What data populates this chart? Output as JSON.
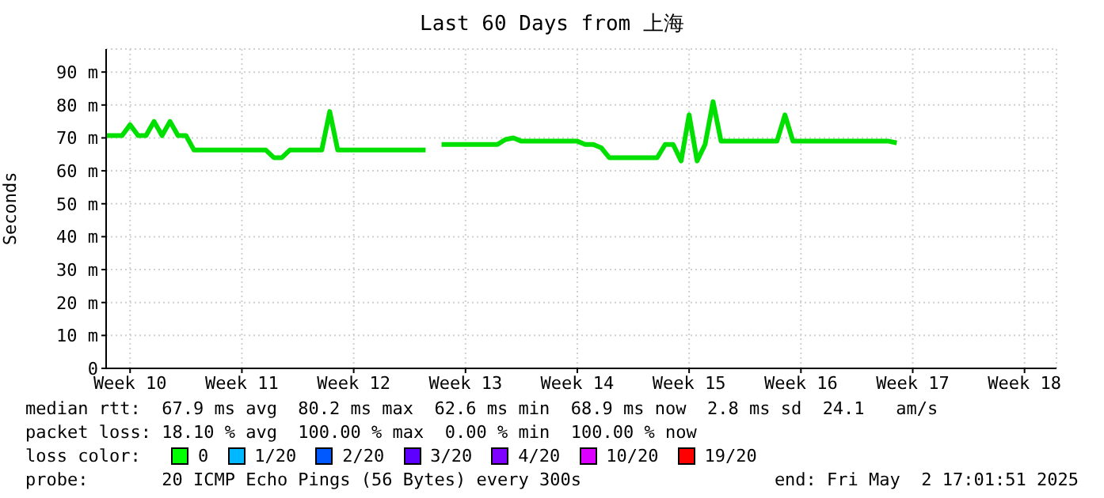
{
  "chart_data": {
    "type": "line",
    "title": "Last 60 Days from 上海",
    "ylabel": "Seconds",
    "categories": [
      null,
      null,
      null,
      "Week 10",
      null,
      null,
      null,
      null,
      null,
      null,
      null,
      null,
      null,
      null,
      null,
      null,
      null,
      "Week 11",
      null,
      null,
      null,
      null,
      null,
      null,
      null,
      null,
      null,
      null,
      null,
      null,
      null,
      "Week 12",
      null,
      null,
      null,
      null,
      null,
      null,
      null,
      null,
      null,
      null,
      null,
      null,
      null,
      "Week 13",
      null,
      null,
      null,
      null,
      null,
      null,
      null,
      null,
      null,
      null,
      null,
      null,
      null,
      "Week 14",
      null,
      null,
      null,
      null,
      null,
      null,
      null,
      null,
      null,
      null,
      null,
      null,
      null,
      "Week 15",
      null,
      null,
      null,
      null,
      null,
      null,
      null,
      null,
      null,
      null,
      null,
      null,
      null,
      "Week 16",
      null,
      null,
      null,
      null,
      null,
      null,
      null,
      null,
      null,
      null,
      null,
      null,
      null,
      "Week 17",
      null,
      null,
      null,
      null,
      null,
      null,
      null,
      null,
      null,
      null,
      null,
      null,
      null,
      "Week 18",
      null,
      null,
      null,
      null
    ],
    "series": [
      {
        "color": "#00e000",
        "values": [
          70.7,
          70.7,
          70.7,
          74,
          70.7,
          70.7,
          75,
          70.7,
          75,
          70.7,
          70.7,
          66.3,
          66.3,
          66.3,
          66.3,
          66.3,
          66.3,
          66.3,
          66.3,
          66.3,
          66.3,
          64,
          64,
          66.3,
          66.3,
          66.3,
          66.3,
          66.3,
          78,
          66.3,
          66.3,
          66.3,
          66.3,
          66.3,
          66.3,
          66.3,
          66.3,
          66.3,
          66.3,
          66.3,
          66.3,
          null,
          68,
          68,
          68,
          68,
          68,
          68,
          68,
          68,
          69.5,
          70,
          69,
          69,
          69,
          69,
          69,
          69,
          69,
          69,
          68,
          68,
          67,
          64,
          64,
          64,
          64,
          64,
          64,
          64,
          68,
          68,
          63,
          77,
          63,
          68,
          81,
          69,
          69,
          69,
          69,
          69,
          69,
          69,
          69,
          77,
          69,
          69,
          69,
          69,
          69,
          69,
          69,
          69,
          69,
          69,
          69,
          69,
          69,
          68.5,
          null,
          null,
          null,
          null,
          null,
          null,
          null,
          null,
          null,
          null,
          null,
          null,
          null,
          null,
          null,
          null,
          null,
          null,
          null,
          null
        ]
      }
    ],
    "ylim": [
      0,
      97
    ],
    "yticks": [
      0,
      {
        "value": 10,
        "label": "10 m"
      },
      {
        "value": 20,
        "label": "20 m"
      },
      {
        "value": 30,
        "label": "30 m"
      },
      {
        "value": 40,
        "label": "40 m"
      },
      {
        "value": 50,
        "label": "50 m"
      },
      {
        "value": 60,
        "label": "60 m"
      },
      {
        "value": 70,
        "label": "70 m"
      },
      {
        "value": 80,
        "label": "80 m"
      },
      {
        "value": 90,
        "label": "90 m"
      }
    ],
    "grid": true,
    "marker": "none",
    "line_style": "solid",
    "annotations": [
      "median rtt:  67.9 ms avg  80.2 ms max  62.6 ms min  68.9 ms now  2.8 ms sd  24.1   am/s",
      "packet loss: 18.10 % avg  100.00 % max  0.00 % min  100.00 % now",
      "loss color:",
      "0",
      "1/20",
      "2/20",
      "3/20",
      "4/20",
      "10/20",
      "19/20",
      "probe:       20 ICMP Echo Pings (56 Bytes) every 300s",
      "end: Fri May  2 17:01:51 2025"
    ]
  }
}
